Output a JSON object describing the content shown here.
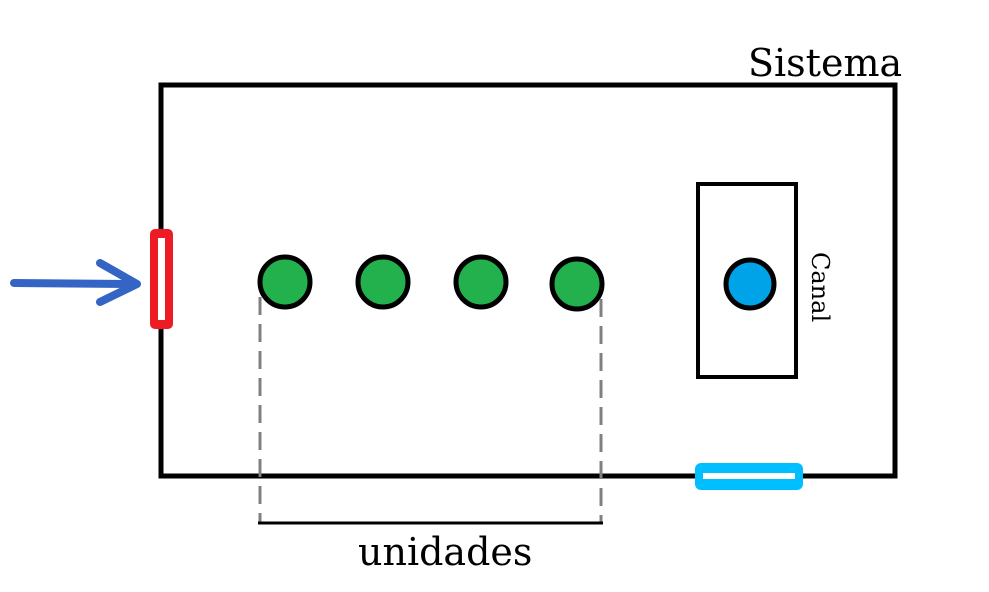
{
  "labels": {
    "system": "Sistema",
    "channel": "Canal",
    "units": "unidades"
  },
  "colors": {
    "outline": "#000000",
    "unit_fill": "#22b14c",
    "server_fill": "#00a2e8",
    "entry_gate": "#ed1c24",
    "exit_gate": "#00bfff",
    "arrival_arrow": "#3465c4",
    "bracket_dash": "#808080"
  },
  "queue": {
    "unit_count": 4
  }
}
